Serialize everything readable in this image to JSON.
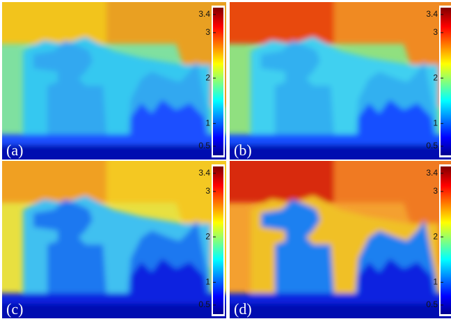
{
  "panels": [
    {
      "label": "(a)"
    },
    {
      "label": "(b)"
    },
    {
      "label": "(c)"
    },
    {
      "label": "(d)"
    }
  ],
  "colorbar": {
    "ticks": [
      3.4,
      3,
      2,
      1,
      0.5
    ],
    "range": [
      0.3,
      3.55
    ]
  }
}
